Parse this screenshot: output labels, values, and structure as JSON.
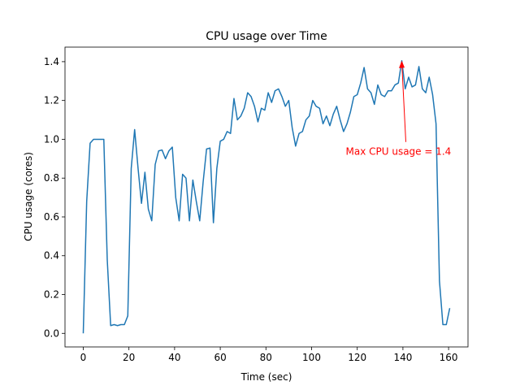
{
  "chart_data": {
    "type": "line",
    "title": "CPU usage over Time",
    "xlabel": "Time (sec)",
    "ylabel": "CPU usage (cores)",
    "series": [
      {
        "name": "CPU usage",
        "color": "#1f77b4",
        "x": [
          0,
          1.5,
          3,
          4.5,
          6,
          7.5,
          9,
          10.5,
          12,
          13.5,
          15,
          16.5,
          18,
          19.5,
          21,
          22.5,
          24,
          25.5,
          27,
          28.5,
          30,
          31.5,
          33,
          34.5,
          36,
          37.5,
          39,
          40.5,
          42,
          43.5,
          45,
          46.5,
          48,
          49.5,
          51,
          52.5,
          54,
          55.5,
          57,
          58.5,
          60,
          61.5,
          63,
          64.5,
          66,
          67.5,
          69,
          70.5,
          72,
          73.5,
          75,
          76.5,
          78,
          79.5,
          81,
          82.5,
          84,
          85.5,
          87,
          88.5,
          90,
          91.5,
          93,
          94.5,
          96,
          97.5,
          99,
          100.5,
          102,
          103.5,
          105,
          106.5,
          108,
          109.5,
          111,
          112.5,
          114,
          115.5,
          117,
          118.5,
          120,
          121.5,
          123,
          124.5,
          126,
          127.5,
          129,
          130.5,
          132,
          133.5,
          135,
          136.5,
          138,
          139.5,
          141,
          142.5,
          144,
          145.5,
          147,
          148.5,
          150,
          151.5,
          153,
          154.5,
          156,
          157.5,
          159,
          160.5
        ],
        "values": [
          0.0,
          0.68,
          0.98,
          1.0,
          1.0,
          1.0,
          1.0,
          0.38,
          0.04,
          0.045,
          0.04,
          0.045,
          0.045,
          0.09,
          0.85,
          1.05,
          0.85,
          0.67,
          0.83,
          0.64,
          0.58,
          0.87,
          0.94,
          0.945,
          0.9,
          0.94,
          0.96,
          0.7,
          0.58,
          0.82,
          0.8,
          0.58,
          0.79,
          0.68,
          0.58,
          0.78,
          0.95,
          0.955,
          0.57,
          0.85,
          0.99,
          1.0,
          1.04,
          1.03,
          1.21,
          1.1,
          1.12,
          1.16,
          1.24,
          1.22,
          1.17,
          1.09,
          1.16,
          1.15,
          1.24,
          1.19,
          1.25,
          1.26,
          1.22,
          1.17,
          1.2,
          1.06,
          0.965,
          1.03,
          1.04,
          1.1,
          1.12,
          1.2,
          1.17,
          1.16,
          1.08,
          1.12,
          1.07,
          1.13,
          1.17,
          1.1,
          1.04,
          1.08,
          1.14,
          1.22,
          1.23,
          1.29,
          1.37,
          1.26,
          1.24,
          1.18,
          1.28,
          1.23,
          1.22,
          1.25,
          1.25,
          1.28,
          1.29,
          1.405,
          1.26,
          1.32,
          1.27,
          1.28,
          1.375,
          1.26,
          1.24,
          1.32,
          1.23,
          1.08,
          0.27,
          0.045,
          0.045,
          0.13
        ]
      }
    ],
    "annotation": {
      "text": "Max CPU usage = 1.4",
      "color": "#ff0000"
    },
    "xlim": [
      -8,
      168.5
    ],
    "xticks": [
      0,
      20,
      40,
      60,
      80,
      100,
      120,
      140,
      160
    ],
    "ylim": [
      -0.07,
      1.475
    ],
    "yticks": [
      {
        "value": 0,
        "label": "0.0"
      },
      0.2,
      0.4,
      0.6,
      0.8,
      {
        "value": 1,
        "label": "1.0"
      },
      1.2,
      1.4
    ]
  }
}
